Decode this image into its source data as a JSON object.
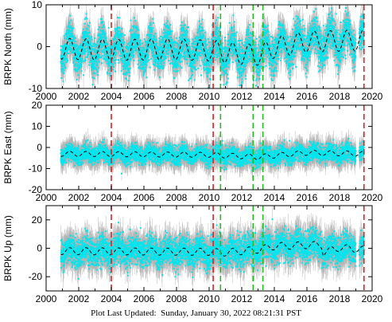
{
  "footer": {
    "label": "Plot Last Updated:",
    "timestamp": "Sunday, January 30, 2022 08:21:31 PST"
  },
  "colors": {
    "data": "#00e5ee",
    "errorbar": "#b4b4b4",
    "model": "#000000",
    "red_line": "#dd2222",
    "green_line": "#22bb22"
  },
  "chart_data": [
    {
      "type": "scatter",
      "panel": "north",
      "ylabel": "BRPK North (mm)",
      "xlim": [
        2000,
        2020
      ],
      "ylim": [
        -10,
        10
      ],
      "xticks": [
        2000,
        2002,
        2004,
        2006,
        2008,
        2010,
        2012,
        2014,
        2016,
        2018,
        2020
      ],
      "yticks": [
        -10,
        0,
        10
      ],
      "data_span": [
        2000.9,
        2019.5
      ],
      "seasonal_amplitude_mm": 2.5,
      "model_points": [
        [
          2001,
          -0.5
        ],
        [
          2004,
          -0.8
        ],
        [
          2008,
          -0.6
        ],
        [
          2010.3,
          -1.0
        ],
        [
          2012,
          -1.8
        ],
        [
          2013.2,
          -2.0
        ],
        [
          2014,
          -0.2
        ],
        [
          2016,
          1.2
        ],
        [
          2019.5,
          1.5
        ]
      ],
      "scatter_sd_mm": 2.2,
      "error_mm": 2.5,
      "red_lines": [
        2004.0,
        2010.25,
        2019.5
      ],
      "green_lines": [
        2010.7,
        2012.7,
        2013.3
      ]
    },
    {
      "type": "scatter",
      "panel": "east",
      "ylabel": "BRPK East (mm)",
      "xlim": [
        2000,
        2020
      ],
      "ylim": [
        -20,
        20
      ],
      "xticks": [
        2000,
        2002,
        2004,
        2006,
        2008,
        2010,
        2012,
        2014,
        2016,
        2018,
        2020
      ],
      "yticks": [
        -20,
        -10,
        0,
        10,
        20
      ],
      "data_span": [
        2000.9,
        2019.5
      ],
      "seasonal_amplitude_mm": 1.2,
      "model_points": [
        [
          2001,
          -3.0
        ],
        [
          2010,
          -3.5
        ],
        [
          2013,
          -4.5
        ],
        [
          2016,
          -2.5
        ],
        [
          2019.5,
          -3.0
        ]
      ],
      "scatter_sd_mm": 2.0,
      "error_mm": 4.0,
      "red_lines": [
        2004.0,
        2010.25,
        2019.5
      ],
      "green_lines": [
        2010.7,
        2012.7,
        2013.3
      ]
    },
    {
      "type": "scatter",
      "panel": "up",
      "ylabel": "BRPK Up (mm)",
      "xlim": [
        2000,
        2020
      ],
      "ylim": [
        -30,
        30
      ],
      "xticks": [
        2000,
        2002,
        2004,
        2006,
        2008,
        2010,
        2012,
        2014,
        2016,
        2018,
        2020
      ],
      "yticks": [
        -20,
        0,
        20
      ],
      "data_span": [
        2000.9,
        2019.5
      ],
      "seasonal_amplitude_mm": 2.5,
      "model_points": [
        [
          2001,
          -2.0
        ],
        [
          2010,
          -2.5
        ],
        [
          2011,
          -3.0
        ],
        [
          2013,
          -1.0
        ],
        [
          2014,
          1.5
        ],
        [
          2016.9,
          2.5
        ],
        [
          2017.0,
          -3.0
        ],
        [
          2018,
          0.5
        ],
        [
          2019.5,
          -1.0
        ]
      ],
      "scatter_sd_mm": 5.0,
      "error_mm": 8.0,
      "red_lines": [
        2004.0,
        2010.25,
        2019.5
      ],
      "green_lines": [
        2010.7,
        2012.7,
        2013.3
      ]
    }
  ]
}
